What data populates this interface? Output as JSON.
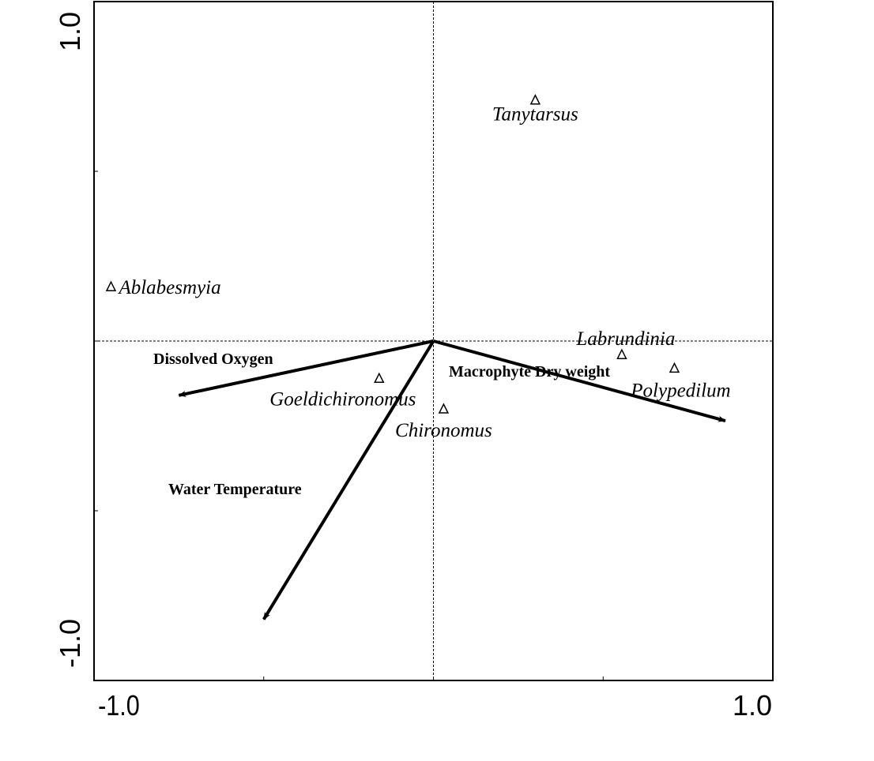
{
  "chart_data": {
    "type": "scatter",
    "title": "",
    "xlabel": "",
    "ylabel": "",
    "xlim": [
      -1.0,
      1.0
    ],
    "ylim": [
      -1.0,
      1.0
    ],
    "x_tick_labels": [
      "-1.0",
      "1.0"
    ],
    "y_tick_labels": [
      "1.0",
      "-1.0"
    ],
    "minor_ticks": [
      -0.5,
      0,
      0.5
    ],
    "grid": false,
    "zero_lines": true,
    "species": [
      {
        "name": "Tanytarsus",
        "x": 0.3,
        "y": 0.71
      },
      {
        "name": "Ablabesmyia",
        "x": -0.95,
        "y": 0.16
      },
      {
        "name": "Labrundinia",
        "x": 0.555,
        "y": -0.04
      },
      {
        "name": "Polypedilum",
        "x": 0.71,
        "y": -0.08
      },
      {
        "name": "Goeldichironomus",
        "x": -0.16,
        "y": -0.11
      },
      {
        "name": "Chironomus",
        "x": 0.03,
        "y": -0.2
      }
    ],
    "environmental_vectors": [
      {
        "name": "Dissolved Oxygen",
        "x": -0.75,
        "y": -0.16
      },
      {
        "name": "Water Temperature",
        "x": -0.5,
        "y": -0.82
      },
      {
        "name": "Macrophyte Dry weight",
        "x": 0.86,
        "y": -0.235
      }
    ]
  }
}
